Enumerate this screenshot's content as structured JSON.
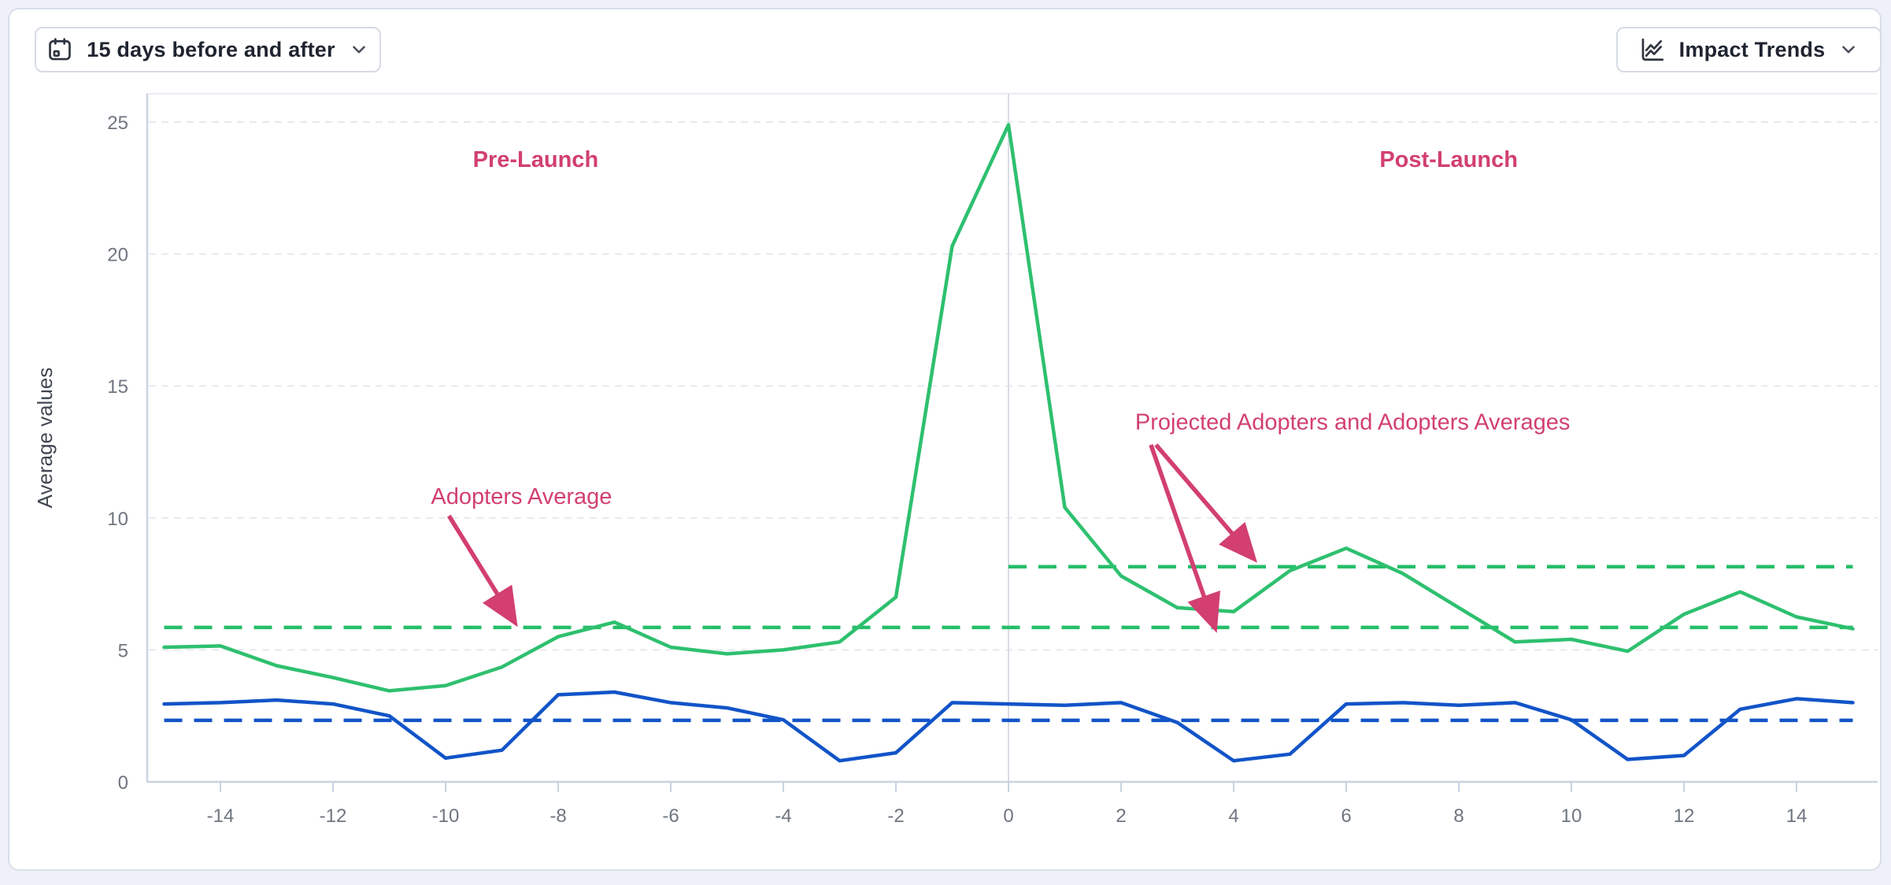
{
  "header": {
    "date_range_button": {
      "label": "15 days before and after",
      "icon": "calendar-icon"
    },
    "trends_button": {
      "label": "Impact Trends",
      "icon": "trend-chart-icon"
    }
  },
  "colors": {
    "adopters_green": "#2ec06f",
    "projected_blue": "#1254c8",
    "annotation_pink": "#d23f70",
    "grid": "#e7e9ee",
    "axis": "#c9d3e2",
    "zero_line": "#d8dce4"
  },
  "chart_data": {
    "type": "line",
    "title": "",
    "xlabel": "",
    "ylabel": "Average values",
    "xlim": [
      -15,
      15
    ],
    "ylim": [
      0,
      26
    ],
    "grid": "horizontal-dashed",
    "legend": "none",
    "xticks": [
      -14,
      -12,
      -10,
      -8,
      -6,
      -4,
      -2,
      0,
      2,
      4,
      6,
      8,
      10,
      12,
      14
    ],
    "yticks": [
      0,
      5,
      10,
      15,
      20,
      25
    ],
    "x": [
      -15,
      -14,
      -13,
      -12,
      -11,
      -10,
      -9,
      -8,
      -7,
      -6,
      -5,
      -4,
      -3,
      -2,
      -1,
      0,
      1,
      2,
      3,
      4,
      5,
      6,
      7,
      8,
      9,
      10,
      11,
      12,
      13,
      14,
      15
    ],
    "series": [
      {
        "name": "Adopters",
        "style": "solid",
        "color": "#2ec06f",
        "values": [
          5.1,
          5.15,
          4.4,
          3.95,
          3.45,
          3.65,
          4.35,
          5.5,
          6.05,
          5.1,
          4.85,
          5.0,
          5.3,
          7.0,
          20.3,
          24.9,
          10.4,
          7.8,
          6.6,
          6.45,
          8.0,
          8.85,
          7.9,
          6.6,
          5.3,
          5.4,
          4.95,
          6.35,
          7.2,
          6.25,
          5.8
        ]
      },
      {
        "name": "Projected Adopters",
        "style": "solid",
        "color": "#1254c8",
        "values": [
          2.95,
          3.0,
          3.1,
          2.95,
          2.5,
          0.9,
          1.2,
          3.3,
          3.4,
          3.0,
          2.8,
          2.35,
          0.8,
          1.1,
          3.0,
          2.95,
          2.9,
          3.0,
          2.25,
          0.8,
          1.05,
          2.95,
          3.0,
          2.9,
          3.0,
          2.35,
          0.85,
          1.0,
          2.75,
          3.15,
          3.0
        ]
      }
    ],
    "reference_lines": [
      {
        "name": "Adopters Average (pre-launch)",
        "color": "#25be68",
        "style": "dashed",
        "value": 5.85,
        "x_start": -15,
        "x_end": 15
      },
      {
        "name": "Adopters Average (post-launch)",
        "color": "#25be68",
        "style": "dashed",
        "value": 8.15,
        "x_start": 0,
        "x_end": 15
      },
      {
        "name": "Projected Adopters Average",
        "color": "#1254c8",
        "style": "dashed",
        "value": 2.33,
        "x_start": -15,
        "x_end": 15
      }
    ],
    "annotations": [
      {
        "text": "Pre-Launch",
        "bold": true,
        "anchor": "middle",
        "x": -8.4,
        "y": 23.3,
        "arrows": []
      },
      {
        "text": "Post-Launch",
        "bold": true,
        "anchor": "middle",
        "x": 7.82,
        "y": 23.3,
        "arrows": []
      },
      {
        "text": "Adopters Average",
        "bold": false,
        "anchor": "start",
        "x": -10.26,
        "y": 10.53,
        "arrows": [
          {
            "from": [
              -9.94,
              10.08
            ],
            "to": [
              -8.8,
              6.15
            ]
          }
        ]
      },
      {
        "text": "Projected Adopters and Adopters Averages",
        "bold": false,
        "anchor": "start",
        "x": 2.25,
        "y": 13.35,
        "arrows": [
          {
            "from": [
              2.53,
              12.77
            ],
            "to": [
              3.65,
              5.95
            ]
          },
          {
            "from": [
              2.62,
              12.77
            ],
            "to": [
              4.32,
              8.55
            ]
          }
        ]
      }
    ]
  }
}
